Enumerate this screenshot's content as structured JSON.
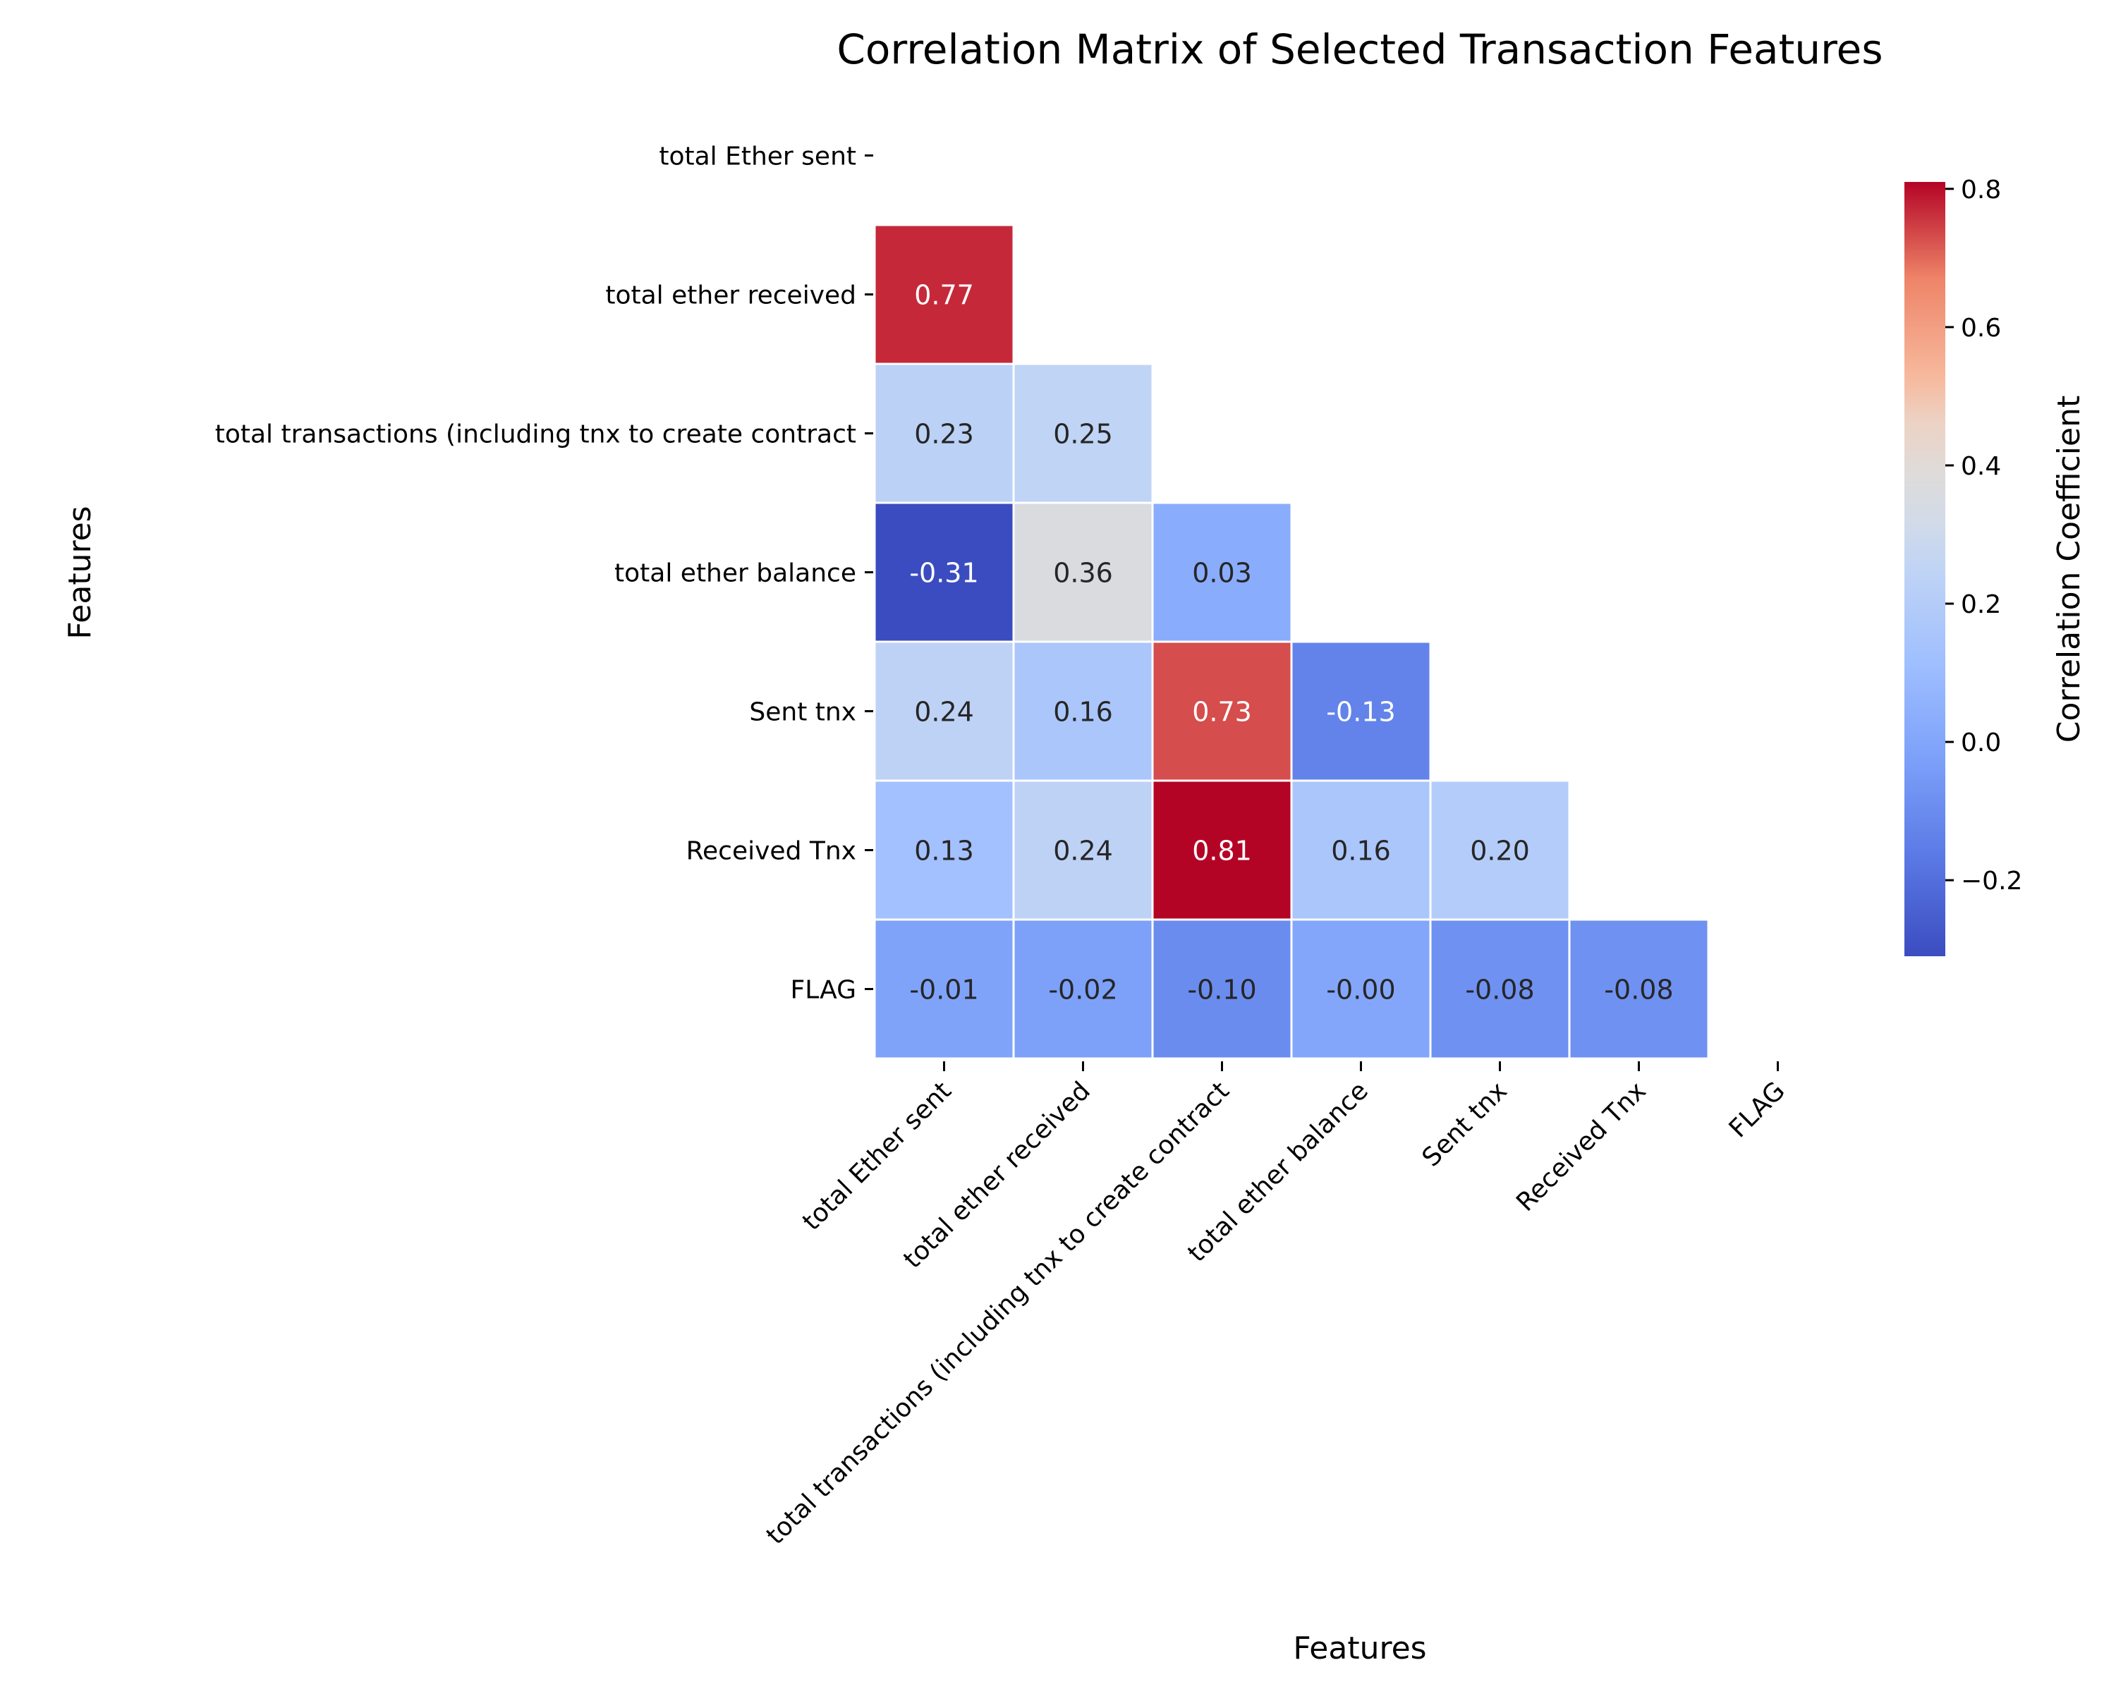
{
  "chart_data": {
    "type": "heatmap",
    "title": "Correlation Matrix of Selected Transaction Features",
    "xlabel": "Features",
    "ylabel": "Features",
    "labels": [
      "total Ether sent",
      "total ether received",
      "total transactions (including tnx to create contract",
      "total ether balance",
      "Sent tnx",
      "Received Tnx",
      "FLAG"
    ],
    "mask": "upper triangle including diagonal",
    "values": [
      [
        null,
        null,
        null,
        null,
        null,
        null,
        null
      ],
      [
        0.77,
        null,
        null,
        null,
        null,
        null,
        null
      ],
      [
        0.23,
        0.25,
        null,
        null,
        null,
        null,
        null
      ],
      [
        -0.31,
        0.36,
        0.03,
        null,
        null,
        null,
        null
      ],
      [
        0.24,
        0.16,
        0.73,
        -0.13,
        null,
        null,
        null
      ],
      [
        0.13,
        0.24,
        0.81,
        0.16,
        0.2,
        null,
        null
      ],
      [
        -0.01,
        -0.02,
        -0.1,
        -0.0,
        -0.08,
        -0.08,
        null
      ]
    ],
    "annotation_format": "0.00",
    "colorbar": {
      "label": "Correlation Coefficient",
      "colormap": "coolwarm",
      "vmin": -0.31,
      "vmax": 0.81,
      "ticks": [
        0.8,
        0.6,
        0.4,
        0.2,
        0.0,
        -0.2
      ],
      "tick_labels": [
        "0.8",
        "0.6",
        "0.4",
        "0.2",
        "0.0",
        "−0.2"
      ]
    },
    "grid": false,
    "cell_separator_color": "#ffffff"
  }
}
